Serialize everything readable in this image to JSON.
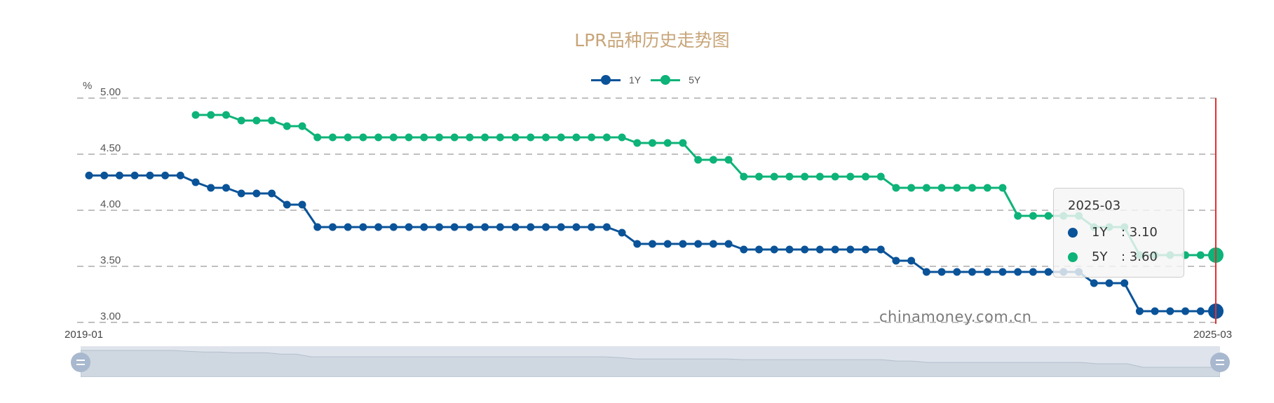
{
  "title": "LPR品种历史走势图",
  "legend": [
    {
      "name": "1Y",
      "color": "#0a5398"
    },
    {
      "name": "5Y",
      "color": "#0db378"
    }
  ],
  "axis": {
    "unit": "%",
    "y_ticks": [
      "5.00",
      "4.50",
      "4.00",
      "3.50",
      "3.00"
    ],
    "x_start_label": "2019-01",
    "x_end_label": "2025-03"
  },
  "watermark": "chinamoney.com.cn",
  "tooltip": {
    "title": "2025-03",
    "rows": [
      {
        "name": "1Y",
        "value": ": 3.10",
        "color": "#0a5398"
      },
      {
        "name": "5Y",
        "value": ": 3.60",
        "color": "#0db378"
      }
    ]
  },
  "cursor_color": "#e03030",
  "chart_data": {
    "type": "line",
    "title": "LPR品种历史走势图",
    "xlabel": "",
    "ylabel": "%",
    "ylim": [
      3.0,
      5.0
    ],
    "grid": true,
    "legend_position": "top",
    "x": [
      "2019-01",
      "2019-02",
      "2019-03",
      "2019-04",
      "2019-05",
      "2019-06",
      "2019-07",
      "2019-08",
      "2019-09",
      "2019-10",
      "2019-11",
      "2019-12",
      "2020-01",
      "2020-02",
      "2020-03",
      "2020-04",
      "2020-05",
      "2020-06",
      "2020-07",
      "2020-08",
      "2020-09",
      "2020-10",
      "2020-11",
      "2020-12",
      "2021-01",
      "2021-02",
      "2021-03",
      "2021-04",
      "2021-05",
      "2021-06",
      "2021-07",
      "2021-08",
      "2021-09",
      "2021-10",
      "2021-11",
      "2021-12",
      "2022-01",
      "2022-02",
      "2022-03",
      "2022-04",
      "2022-05",
      "2022-06",
      "2022-07",
      "2022-08",
      "2022-09",
      "2022-10",
      "2022-11",
      "2022-12",
      "2023-01",
      "2023-02",
      "2023-03",
      "2023-04",
      "2023-05",
      "2023-06",
      "2023-07",
      "2023-08",
      "2023-09",
      "2023-10",
      "2023-11",
      "2023-12",
      "2024-01",
      "2024-02",
      "2024-03",
      "2024-04",
      "2024-05",
      "2024-06",
      "2024-07",
      "2024-08",
      "2024-09",
      "2024-10",
      "2024-11",
      "2024-12",
      "2025-01",
      "2025-02",
      "2025-03"
    ],
    "series": [
      {
        "name": "1Y",
        "values": [
          4.31,
          4.31,
          4.31,
          4.31,
          4.31,
          4.31,
          4.31,
          4.25,
          4.2,
          4.2,
          4.15,
          4.15,
          4.15,
          4.05,
          4.05,
          3.85,
          3.85,
          3.85,
          3.85,
          3.85,
          3.85,
          3.85,
          3.85,
          3.85,
          3.85,
          3.85,
          3.85,
          3.85,
          3.85,
          3.85,
          3.85,
          3.85,
          3.85,
          3.85,
          3.85,
          3.8,
          3.7,
          3.7,
          3.7,
          3.7,
          3.7,
          3.7,
          3.7,
          3.65,
          3.65,
          3.65,
          3.65,
          3.65,
          3.65,
          3.65,
          3.65,
          3.65,
          3.65,
          3.55,
          3.55,
          3.45,
          3.45,
          3.45,
          3.45,
          3.45,
          3.45,
          3.45,
          3.45,
          3.45,
          3.45,
          3.45,
          3.35,
          3.35,
          3.35,
          3.1,
          3.1,
          3.1,
          3.1,
          3.1,
          3.1
        ]
      },
      {
        "name": "5Y",
        "values": [
          null,
          null,
          null,
          null,
          null,
          null,
          null,
          4.85,
          4.85,
          4.85,
          4.8,
          4.8,
          4.8,
          4.75,
          4.75,
          4.65,
          4.65,
          4.65,
          4.65,
          4.65,
          4.65,
          4.65,
          4.65,
          4.65,
          4.65,
          4.65,
          4.65,
          4.65,
          4.65,
          4.65,
          4.65,
          4.65,
          4.65,
          4.65,
          4.65,
          4.65,
          4.6,
          4.6,
          4.6,
          4.6,
          4.45,
          4.45,
          4.45,
          4.3,
          4.3,
          4.3,
          4.3,
          4.3,
          4.3,
          4.3,
          4.3,
          4.3,
          4.3,
          4.2,
          4.2,
          4.2,
          4.2,
          4.2,
          4.2,
          4.2,
          4.2,
          3.95,
          3.95,
          3.95,
          3.95,
          3.95,
          3.85,
          3.85,
          3.85,
          3.6,
          3.6,
          3.6,
          3.6,
          3.6,
          3.6
        ]
      }
    ]
  }
}
